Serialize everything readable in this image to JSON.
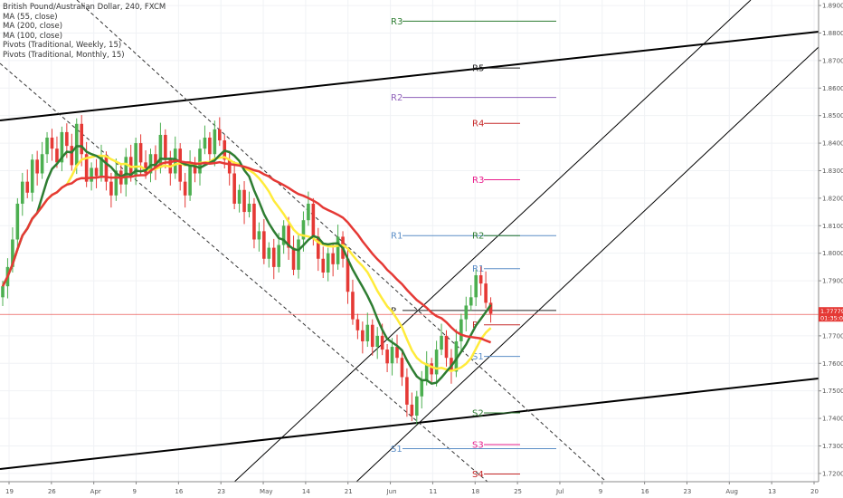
{
  "legend": {
    "title": "British Pound/Australian Dollar, 240, FXCM",
    "lines": [
      "MA (55, close)",
      "MA (200, close)",
      "MA (100, close)",
      "Pivots (Traditional, Weekly, 15)",
      "Pivots (Traditional, Monthly, 15)"
    ]
  },
  "price_tag": {
    "value": "1.77779",
    "countdown": "01:35:06",
    "color": "#e53935"
  },
  "colors": {
    "up": "#4caf50",
    "down": "#e53935",
    "ma55": "#2e7d32",
    "ma200": "#e53935",
    "ma100": "#ffeb3b",
    "axis_text": "#555555"
  },
  "chart_data": {
    "type": "candlestick",
    "title": "British Pound/Australian Dollar, 240, FXCM",
    "y_ticks": [
      "1.89000",
      "1.88000",
      "1.87000",
      "1.86000",
      "1.85000",
      "1.84000",
      "1.83000",
      "1.82000",
      "1.81000",
      "1.80000",
      "1.79000",
      "1.77000",
      "1.76000",
      "1.75000",
      "1.74000",
      "1.73000",
      "1.72000"
    ],
    "ylim": [
      1.717,
      1.892
    ],
    "x_ticks": [
      "19",
      "26",
      "Apr",
      "9",
      "16",
      "23",
      "May",
      "14",
      "21",
      "Jun",
      "11",
      "18",
      "25",
      "Jul",
      "9",
      "16",
      "23",
      "Aug",
      "13",
      "20"
    ],
    "monthly_pivots": [
      {
        "label": "R3",
        "value": 1.8843,
        "color": "#2e7d32"
      },
      {
        "label": "R2",
        "value": 1.8566,
        "color": "#8e5fb8"
      },
      {
        "label": "R1",
        "value": 1.8064,
        "color": "#5b8ec7"
      },
      {
        "label": "P",
        "value": 1.7792,
        "color": "#222222"
      },
      {
        "label": "S1",
        "value": 1.729,
        "color": "#5b8ec7"
      }
    ],
    "weekly_pivots": [
      {
        "label": "R5",
        "value": 1.8673,
        "color": "#222222"
      },
      {
        "label": "R4",
        "value": 1.8472,
        "color": "#c62828"
      },
      {
        "label": "R3",
        "value": 1.8267,
        "color": "#e91e8c"
      },
      {
        "label": "R2",
        "value": 1.8064,
        "color": "#2e7d32"
      },
      {
        "label": "R1",
        "value": 1.7944,
        "color": "#5b8ec7"
      },
      {
        "label": "P",
        "value": 1.774,
        "color": "#c62828"
      },
      {
        "label": "S1",
        "value": 1.7625,
        "color": "#5b8ec7"
      },
      {
        "label": "S2",
        "value": 1.742,
        "color": "#2e7d32"
      },
      {
        "label": "S3",
        "value": 1.7305,
        "color": "#e91e8c"
      },
      {
        "label": "S4",
        "value": 1.7198,
        "color": "#c62828"
      }
    ],
    "candles_close": [
      1.788,
      1.795,
      1.805,
      1.818,
      1.826,
      1.822,
      1.834,
      1.829,
      1.836,
      1.842,
      1.838,
      1.833,
      1.844,
      1.839,
      1.832,
      1.847,
      1.836,
      1.826,
      1.831,
      1.828,
      1.835,
      1.826,
      1.821,
      1.83,
      1.825,
      1.835,
      1.828,
      1.84,
      1.833,
      1.829,
      1.836,
      1.831,
      1.843,
      1.834,
      1.829,
      1.838,
      1.826,
      1.821,
      1.833,
      1.829,
      1.838,
      1.842,
      1.836,
      1.845,
      1.841,
      1.834,
      1.829,
      1.818,
      1.823,
      1.815,
      1.818,
      1.805,
      1.808,
      1.798,
      1.802,
      1.795,
      1.803,
      1.81,
      1.802,
      1.794,
      1.805,
      1.812,
      1.818,
      1.806,
      1.798,
      1.793,
      1.8,
      1.796,
      1.806,
      1.798,
      1.786,
      1.776,
      1.772,
      1.768,
      1.774,
      1.766,
      1.77,
      1.765,
      1.76,
      1.766,
      1.762,
      1.755,
      1.745,
      1.741,
      1.748,
      1.754,
      1.76,
      1.756,
      1.765,
      1.77,
      1.762,
      1.757,
      1.768,
      1.776,
      1.781,
      1.784,
      1.792,
      1.789,
      1.782,
      1.778
    ],
    "ma55": "computed",
    "ma100": "computed",
    "ma200": "computed",
    "trendlines": "manual channel lines"
  }
}
